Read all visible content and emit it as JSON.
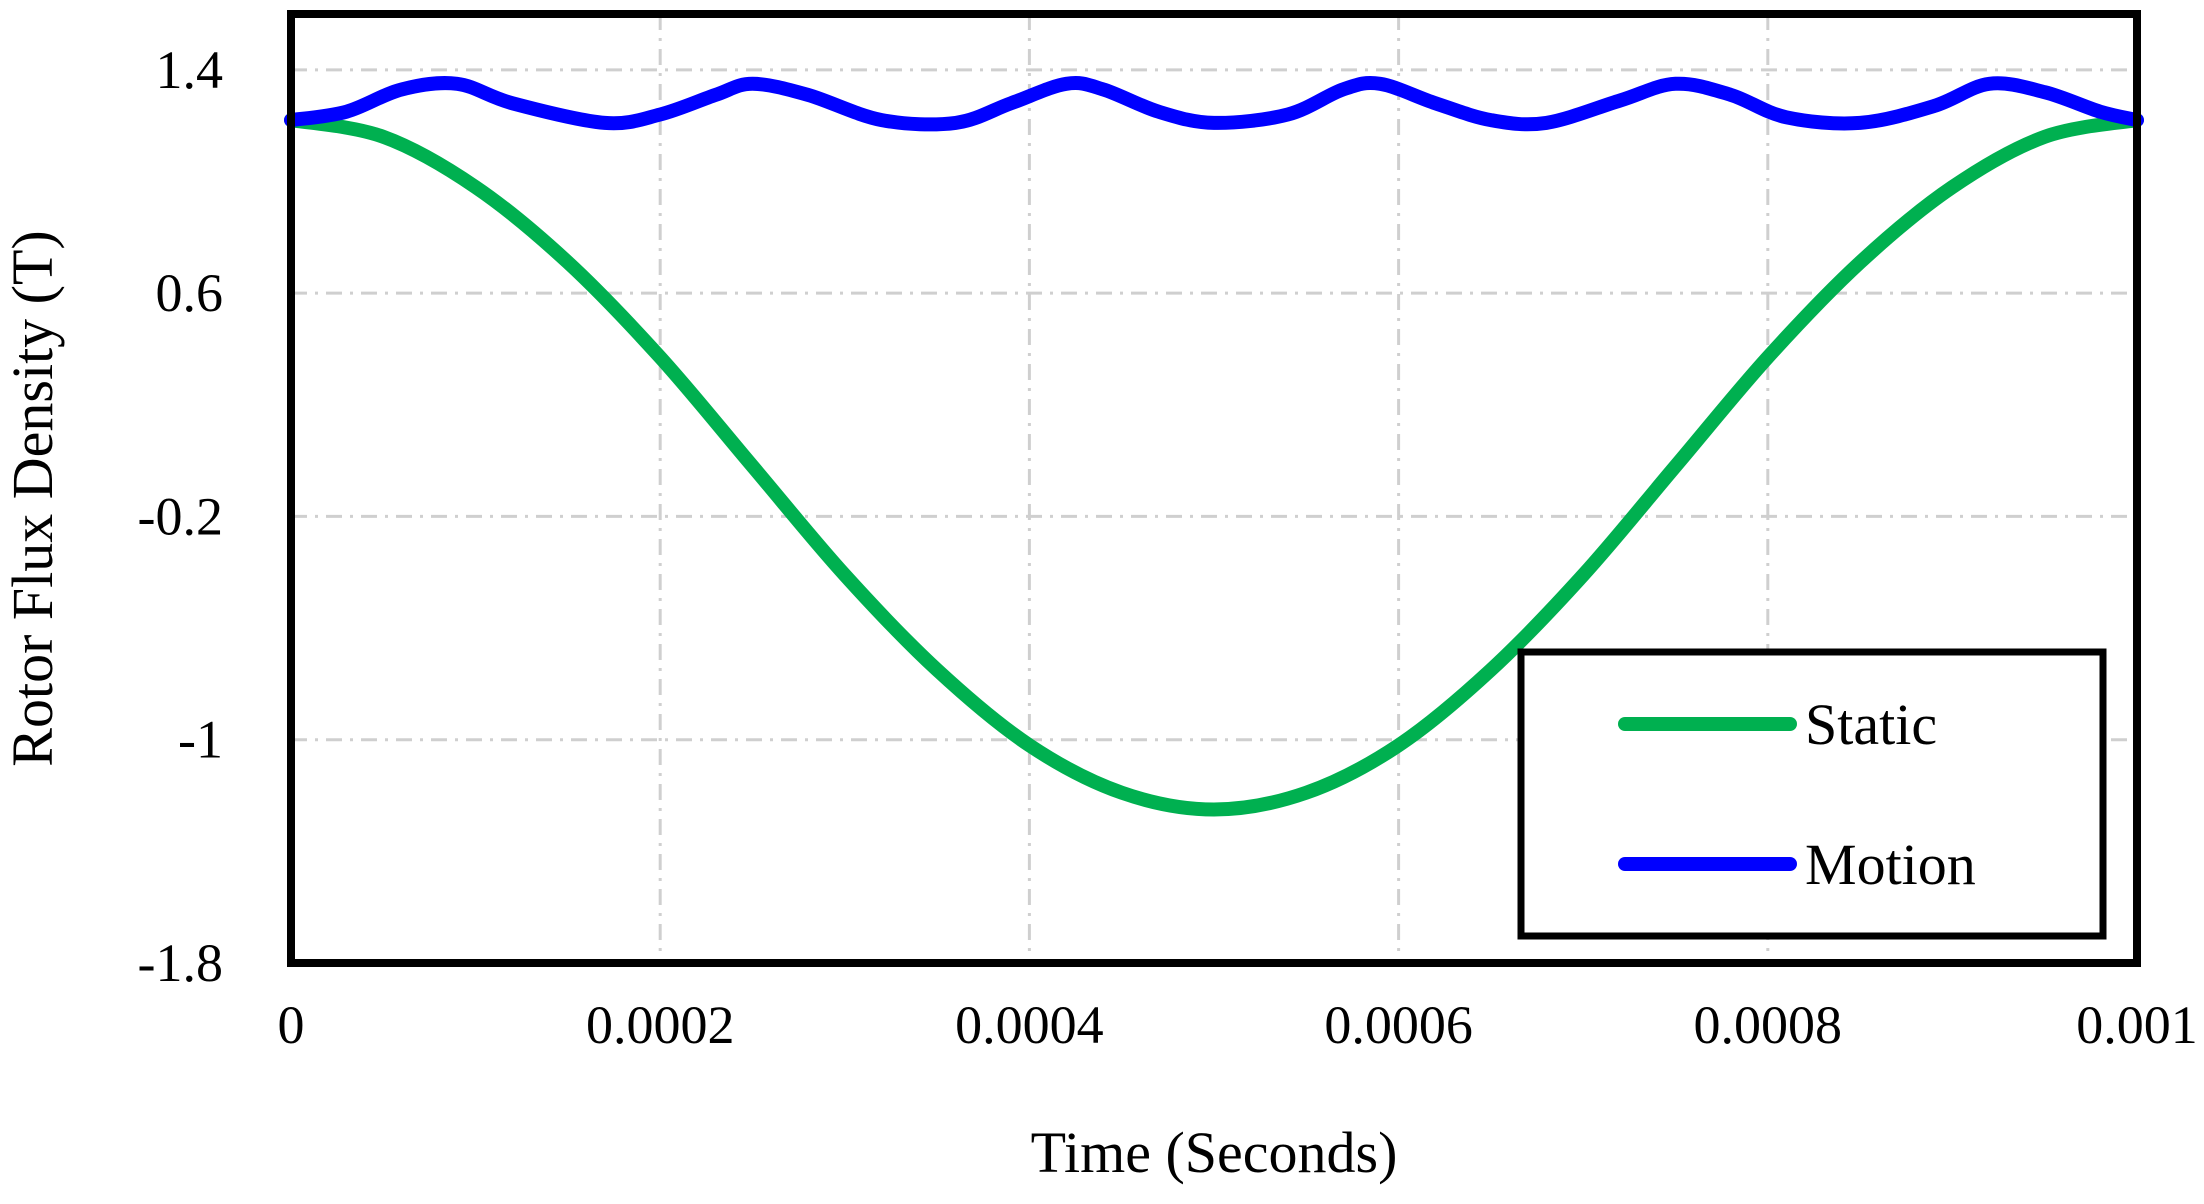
{
  "chart_data": {
    "type": "line",
    "xlabel": "Time (Seconds)",
    "ylabel": "Rotor Flux Density (T)",
    "xlim": [
      0,
      0.001
    ],
    "ylim": [
      -1.8,
      1.6
    ],
    "x_ticks": [
      0,
      0.0002,
      0.0004,
      0.0006,
      0.0008,
      0.001
    ],
    "x_tick_labels": [
      "0",
      "0.0002",
      "0.0004",
      "0.0006",
      "0.0008",
      "0.001"
    ],
    "y_ticks": [
      -1.8,
      -1,
      -0.2,
      0.6,
      1.4
    ],
    "y_tick_labels": [
      "-1.8",
      "-1",
      "-0.2",
      "0.6",
      "1.4"
    ],
    "grid": true,
    "legend_position": "bottom-right",
    "series": [
      {
        "name": "Static",
        "color": "#00b050",
        "x": [
          0,
          5e-05,
          0.0001,
          0.00015,
          0.0002,
          0.00025,
          0.0003,
          0.00035,
          0.0004,
          0.00045,
          0.0005,
          0.00055,
          0.0006,
          0.00065,
          0.0007,
          0.00075,
          0.0008,
          0.00085,
          0.0009,
          0.00095,
          0.001
        ],
        "y": [
          1.22,
          1.16,
          0.98,
          0.71,
          0.37,
          -0.02,
          -0.41,
          -0.75,
          -1.02,
          -1.19,
          -1.25,
          -1.19,
          -1.02,
          -0.75,
          -0.41,
          -0.02,
          0.37,
          0.71,
          0.98,
          1.16,
          1.22
        ]
      },
      {
        "name": "Motion",
        "color": "#0000ff",
        "x": [
          0,
          3e-05,
          6e-05,
          9e-05,
          0.00012,
          0.00017,
          0.0002,
          0.00023,
          0.00025,
          0.00028,
          0.00032,
          0.00036,
          0.00039,
          0.00042,
          0.00044,
          0.00047,
          0.0005,
          0.00054,
          0.00057,
          0.00059,
          0.00062,
          0.00065,
          0.00068,
          0.00072,
          0.00075,
          0.00078,
          0.00081,
          0.00085,
          0.00089,
          0.00092,
          0.00095,
          0.00098,
          0.001
        ],
        "y": [
          1.22,
          1.25,
          1.33,
          1.35,
          1.28,
          1.21,
          1.24,
          1.31,
          1.35,
          1.31,
          1.22,
          1.21,
          1.28,
          1.35,
          1.33,
          1.25,
          1.21,
          1.24,
          1.33,
          1.35,
          1.28,
          1.22,
          1.21,
          1.29,
          1.35,
          1.31,
          1.23,
          1.21,
          1.27,
          1.35,
          1.32,
          1.25,
          1.22
        ]
      }
    ]
  }
}
